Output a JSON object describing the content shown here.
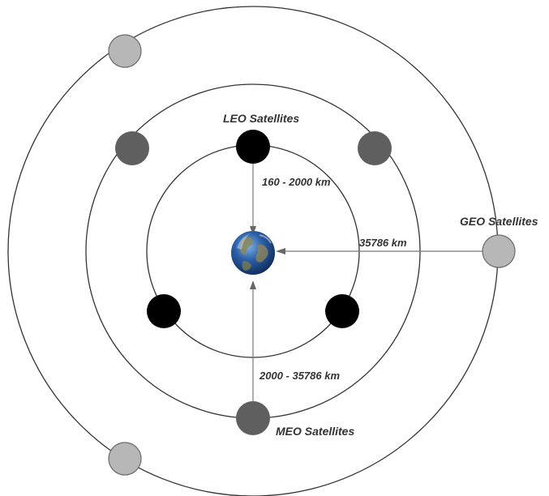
{
  "labels": {
    "leo": "LEO Satellites",
    "meo": "MEO Satellites",
    "geo": "GEO Satellites",
    "leo_distance": "160 - 2000 km",
    "geo_distance": "35786 km",
    "meo_distance": "2000 - 35786 km"
  },
  "colors": {
    "leo_satellite": "#000000",
    "meo_satellite": "#5f5f5f",
    "geo_satellite": "#b7b7b7",
    "orbit": "#333333",
    "arrow": "#777777",
    "earth_ocean": "#2d5fa8",
    "earth_land": "#8a8a5a"
  },
  "icons": {
    "center": "earth-globe-icon",
    "satellite": "satellite-dot-icon"
  }
}
